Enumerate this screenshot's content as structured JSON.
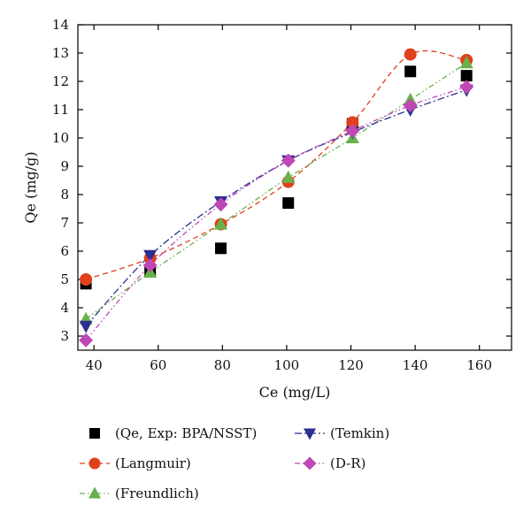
{
  "chart_data": {
    "type": "scatter",
    "xlabel": "Ce (mg/L)",
    "ylabel": "Qe (mg/g)",
    "xlim": [
      35,
      170
    ],
    "ylim": [
      2.5,
      14
    ],
    "xticks": [
      40,
      60,
      80,
      100,
      120,
      140,
      160
    ],
    "yticks": [
      3,
      4,
      5,
      6,
      7,
      8,
      9,
      10,
      11,
      12,
      13,
      14
    ],
    "grid": false,
    "legend_position": "bottom",
    "series": [
      {
        "name": "(Qe, Exp: BPA/NSST)",
        "marker": "square",
        "color": "#000000",
        "line": "none",
        "x": [
          37.5,
          57.5,
          79.5,
          100.5,
          120.5,
          138.5,
          156
        ],
        "y": [
          4.85,
          5.3,
          6.1,
          7.7,
          10.5,
          12.35,
          12.2
        ]
      },
      {
        "name": "(Langmuir)",
        "marker": "circle",
        "color": "#e0401c",
        "line": "dash",
        "x": [
          37.5,
          57.5,
          79.5,
          100.5,
          120.5,
          138.5,
          156
        ],
        "y": [
          5.0,
          5.75,
          6.95,
          8.45,
          10.55,
          12.95,
          12.75
        ]
      },
      {
        "name": "(Freundlich)",
        "marker": "triangle-up",
        "color": "#6ab04c",
        "line": "dashdotdot",
        "x": [
          37.5,
          57.5,
          79.5,
          100.5,
          120.5,
          138.5,
          156
        ],
        "y": [
          3.6,
          5.25,
          6.95,
          8.6,
          10.0,
          11.35,
          12.65
        ]
      },
      {
        "name": "(Temkin)",
        "marker": "triangle-down",
        "color": "#2b2f8f",
        "line": "dashdot",
        "x": [
          37.5,
          57.5,
          79.5,
          100.5,
          120.5,
          138.5,
          156
        ],
        "y": [
          3.35,
          5.85,
          7.75,
          9.2,
          10.2,
          11.0,
          11.7
        ]
      },
      {
        "name": "(D-R)",
        "marker": "diamond",
        "color": "#c047b6",
        "line": "dashdotdot",
        "x": [
          37.5,
          57.5,
          79.5,
          100.5,
          120.5,
          138.5,
          156
        ],
        "y": [
          2.85,
          5.5,
          7.65,
          9.2,
          10.25,
          11.15,
          11.8
        ]
      }
    ]
  }
}
